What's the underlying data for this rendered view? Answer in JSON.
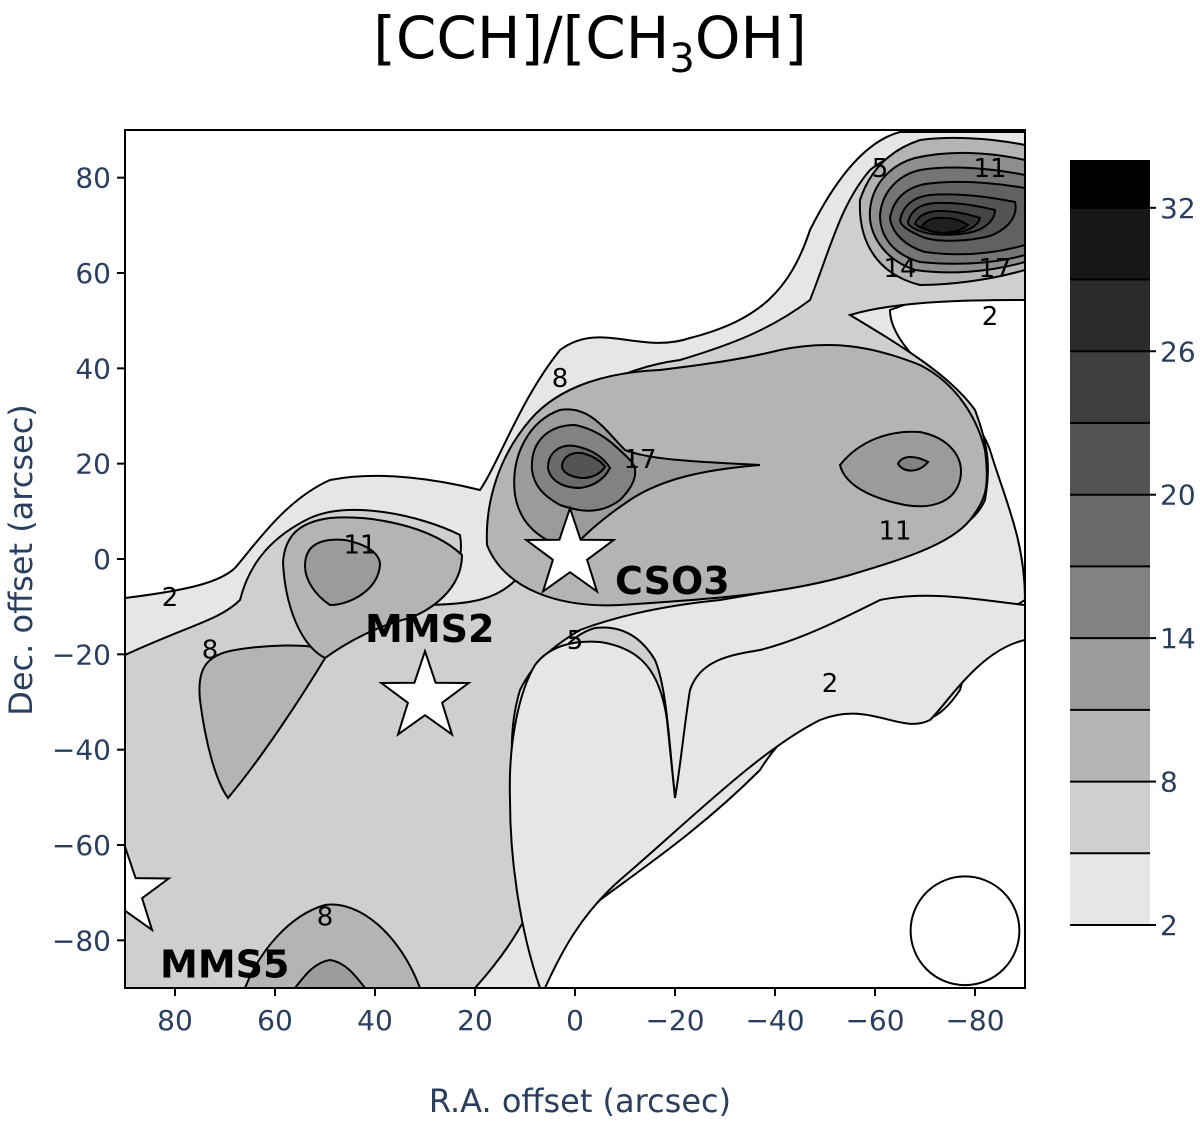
{
  "chart_data": {
    "type": "contour",
    "title_main": "[CCH]/[CH",
    "title_sub": "3",
    "title_end": "OH]",
    "xlabel": "R.A. offset (arcsec)",
    "ylabel": "Dec. offset (arcsec)",
    "xlim": [
      90,
      -90
    ],
    "ylim": [
      -90,
      90
    ],
    "x_ticks": [
      "80",
      "60",
      "40",
      "20",
      "0",
      "−20",
      "−40",
      "−60",
      "−80"
    ],
    "x_tick_values": [
      80,
      60,
      40,
      20,
      0,
      -20,
      -40,
      -60,
      -80
    ],
    "y_ticks": [
      "80",
      "60",
      "40",
      "20",
      "0",
      "−20",
      "−40",
      "−60",
      "−80"
    ],
    "y_tick_values": [
      80,
      60,
      40,
      20,
      0,
      -20,
      -40,
      -60,
      -80
    ],
    "contour_levels": [
      2,
      5,
      8,
      11,
      14,
      17,
      20,
      23,
      26,
      29,
      32
    ],
    "colorbar": {
      "ticks": [
        "32",
        "26",
        "20",
        "14",
        "8",
        "2"
      ],
      "tick_values": [
        32,
        26,
        20,
        14,
        8,
        2
      ],
      "range": [
        2,
        34
      ]
    },
    "contour_labels": [
      {
        "text": "2",
        "x": 81,
        "y": -8
      },
      {
        "text": "8",
        "x": 73,
        "y": -19
      },
      {
        "text": "11",
        "x": 43,
        "y": 3
      },
      {
        "text": "8",
        "x": 3,
        "y": 38
      },
      {
        "text": "17",
        "x": -13,
        "y": 21
      },
      {
        "text": "11",
        "x": -64,
        "y": 6
      },
      {
        "text": "5",
        "x": 0,
        "y": -17
      },
      {
        "text": "2",
        "x": -51,
        "y": -26
      },
      {
        "text": "5",
        "x": -61,
        "y": 82
      },
      {
        "text": "11",
        "x": -83,
        "y": 82
      },
      {
        "text": "14",
        "x": -65,
        "y": 61
      },
      {
        "text": "17",
        "x": -84,
        "y": 61
      },
      {
        "text": "2",
        "x": -83,
        "y": 51
      },
      {
        "text": "8",
        "x": 50,
        "y": -75
      }
    ],
    "sources": [
      {
        "name": "CSO3",
        "x": 1,
        "y": 1
      },
      {
        "name": "MMS2",
        "x": 30,
        "y": -29
      },
      {
        "name": "MMS5",
        "x": 90,
        "y": -70
      }
    ],
    "beam": {
      "x": -78,
      "y": -78,
      "diameter_arcsec": 15
    }
  }
}
